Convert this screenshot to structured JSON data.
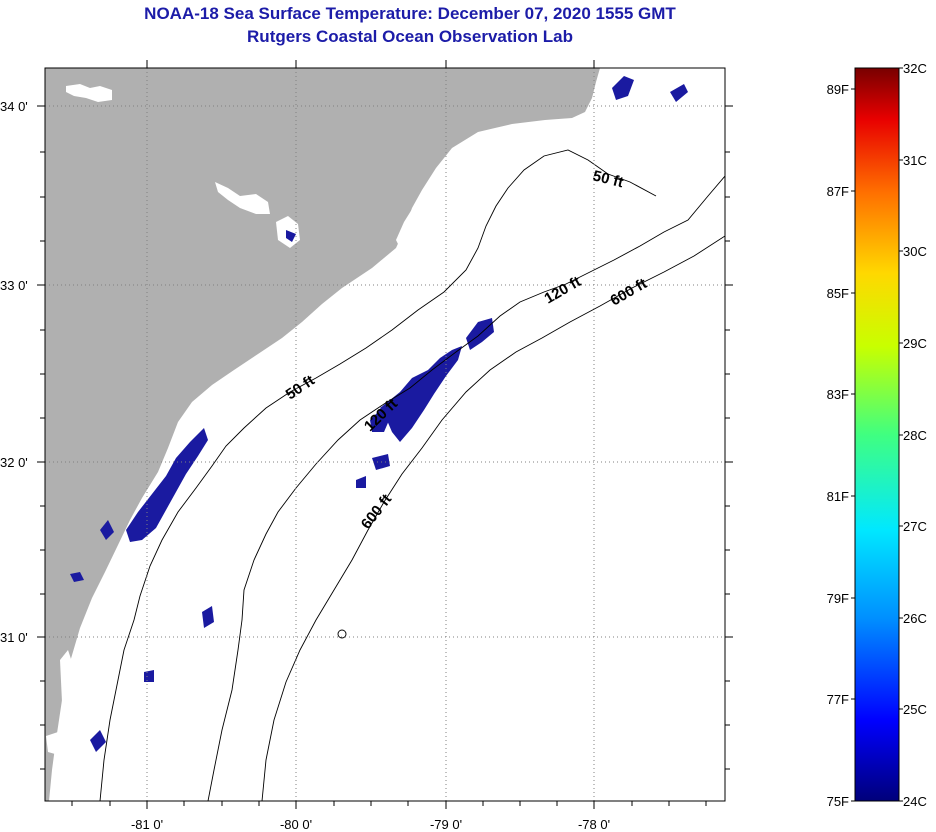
{
  "title": {
    "line1": "NOAA-18 Sea Surface Temperature:  December 07, 2020 1555 GMT",
    "line2": "Rutgers Coastal Ocean Observation Lab"
  },
  "map": {
    "lat_labels": [
      "34 0'",
      "33 0'",
      "32 0'",
      "31 0'"
    ],
    "lon_labels": [
      "-81 0'",
      "-80 0'",
      "-79 0'",
      "-78 0'"
    ],
    "contour_labels": [
      "50 ft",
      "50 ft",
      "120 ft",
      "120 ft",
      "600 ft",
      "600 ft"
    ],
    "colors": {
      "land": "#b0b0b0",
      "ocean_cloud": "#ffffff",
      "cold_water": "#1a1aa0",
      "grid": "#808080"
    }
  },
  "colorbar": {
    "celsius_labels": [
      "32C",
      "31C",
      "30C",
      "29C",
      "28C",
      "27C",
      "26C",
      "25C",
      "24C"
    ],
    "fahrenheit_labels": [
      "89F",
      "87F",
      "85F",
      "83F",
      "81F",
      "79F",
      "77F",
      "75F"
    ],
    "range_c": [
      24,
      32
    ],
    "gradient": [
      "#00007a",
      "#0000ff",
      "#0090ff",
      "#00e8ff",
      "#40ff80",
      "#c8ff00",
      "#ffd800",
      "#ff7000",
      "#e80000",
      "#780000"
    ]
  }
}
